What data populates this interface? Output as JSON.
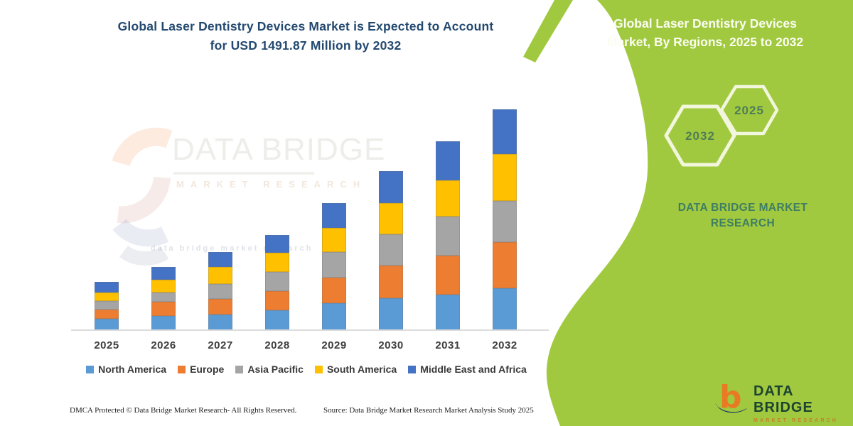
{
  "header": {},
  "chart_data": {
    "type": "bar",
    "stacked": true,
    "title": "Global Laser Dentistry Devices Market is Expected to Account for USD 1491.87 Million by 2032",
    "title_lines": [
      "Global Laser Dentistry Devices Market is Expected to Account",
      "for USD 1491.87 Million by 2032"
    ],
    "categories": [
      "2025",
      "2026",
      "2027",
      "2028",
      "2029",
      "2030",
      "2031",
      "2032"
    ],
    "series": [
      {
        "name": "North America",
        "color": "#5B9BD5",
        "values": [
          77,
          96,
          106,
          136,
          184,
          216,
          240,
          284
        ]
      },
      {
        "name": "Europe",
        "color": "#ED7D31",
        "values": [
          64,
          96,
          103,
          128,
          173,
          219,
          264,
          310
        ]
      },
      {
        "name": "Asia Pacific",
        "color": "#A5A5A5",
        "values": [
          56,
          62,
          101,
          128,
          171,
          213,
          264,
          281
        ]
      },
      {
        "name": "South America",
        "color": "#FFC000",
        "values": [
          59,
          86,
          117,
          132,
          163,
          213,
          243,
          316
        ]
      },
      {
        "name": "Middle East and Africa",
        "color": "#4472C4",
        "values": [
          71,
          89,
          99,
          120,
          170,
          214,
          265,
          301
        ]
      }
    ],
    "unit": "USD Million",
    "total_2032": 1491.87,
    "xlabel": "",
    "ylabel": "",
    "ylim": [
      0,
      1500
    ],
    "grid": false,
    "y_axis_visible": false,
    "legend_position": "bottom"
  },
  "watermark": {
    "line1": "DATA BRIDGE",
    "line2": "MARKET RESEARCH",
    "faint_row": "data bridge market research"
  },
  "side_panel": {
    "title_line1": "Global Laser Dentistry Devices",
    "title_line2": "Market, By Regions, 2025 to 2032",
    "hexagon_large_label": "2032",
    "hexagon_small_label": "2025",
    "brand_line1": "DATA BRIDGE MARKET",
    "brand_line2": "RESEARCH",
    "panel_color": "#A1C940"
  },
  "footer": {
    "left": "DMCA Protected © Data Bridge Market Research-  All Rights Reserved.",
    "source": "Source: Data Bridge Market Research  Market Analysis Study 2025"
  },
  "logo": {
    "name": "DATA BRIDGE",
    "subtitle": "MARKET RESEARCH"
  }
}
